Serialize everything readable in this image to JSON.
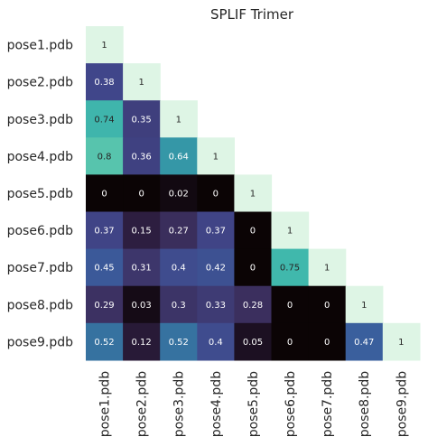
{
  "chart_data": {
    "type": "heatmap",
    "title": "SPLIF Trimer",
    "row_labels": [
      "pose1.pdb",
      "pose2.pdb",
      "pose3.pdb",
      "pose4.pdb",
      "pose5.pdb",
      "pose6.pdb",
      "pose7.pdb",
      "pose8.pdb",
      "pose9.pdb"
    ],
    "col_labels": [
      "pose1.pdb",
      "pose2.pdb",
      "pose3.pdb",
      "pose4.pdb",
      "pose5.pdb",
      "pose6.pdb",
      "pose7.pdb",
      "pose8.pdb",
      "pose9.pdb"
    ],
    "values": [
      [
        1
      ],
      [
        0.38,
        1
      ],
      [
        0.74,
        0.35,
        1
      ],
      [
        0.8,
        0.36,
        0.64,
        1
      ],
      [
        0,
        0,
        0.02,
        0,
        1
      ],
      [
        0.37,
        0.15,
        0.27,
        0.37,
        0,
        1
      ],
      [
        0.45,
        0.31,
        0.4,
        0.42,
        0,
        0.75,
        1
      ],
      [
        0.29,
        0.03,
        0.3,
        0.33,
        0.28,
        0,
        0,
        1
      ],
      [
        0.52,
        0.12,
        0.52,
        0.4,
        0.05,
        0,
        0,
        0.47,
        1
      ]
    ],
    "value_range": [
      0,
      1
    ],
    "mask": "upper-triangle",
    "colormap": "mako",
    "annotations": true
  }
}
